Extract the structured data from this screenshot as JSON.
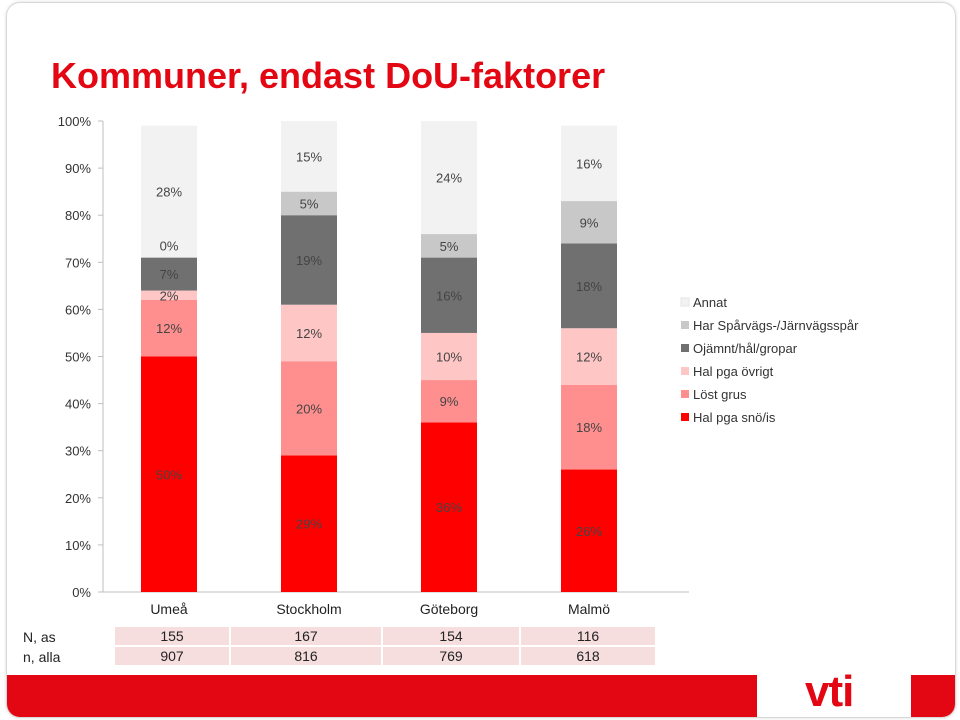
{
  "title": "Kommuner, endast DoU-faktorer",
  "chart_data": {
    "type": "bar",
    "stacked": true,
    "categories": [
      "Umeå",
      "Stockholm",
      "Göteborg",
      "Malmö"
    ],
    "series": [
      {
        "name": "Hal pga snö/is",
        "color": "#ff0000",
        "values": [
          50,
          29,
          36,
          26
        ],
        "labels": [
          "50%",
          "29%",
          "36%",
          "26%"
        ]
      },
      {
        "name": "Löst grus",
        "color": "#ff8f8f",
        "values": [
          12,
          20,
          9,
          18
        ],
        "labels": [
          "12%",
          "20%",
          "9%",
          "18%"
        ]
      },
      {
        "name": "Hal pga övrigt",
        "color": "#ffc6c6",
        "values": [
          2,
          12,
          10,
          12
        ],
        "labels": [
          "2%",
          "12%",
          "10%",
          "12%"
        ]
      },
      {
        "name": "Ojämnt/hål/gropar",
        "color": "#707070",
        "values": [
          7,
          19,
          16,
          18
        ],
        "labels": [
          "7%",
          "19%",
          "16%",
          "18%"
        ]
      },
      {
        "name": "Har Spårvägs-/Järnvägsspår",
        "color": "#c8c8c8",
        "values": [
          0,
          5,
          5,
          9
        ],
        "labels": [
          "0%",
          "5%",
          "5%",
          "9%"
        ]
      },
      {
        "name": "Annat",
        "color": "#f2f2f2",
        "values": [
          28,
          15,
          24,
          16
        ],
        "labels": [
          "28%",
          "15%",
          "24%",
          "16%"
        ]
      }
    ],
    "y_ticks": [
      "0%",
      "10%",
      "20%",
      "30%",
      "40%",
      "50%",
      "60%",
      "70%",
      "80%",
      "90%",
      "100%"
    ],
    "ylim": [
      0,
      100
    ],
    "legend_position": "right",
    "grid": false
  },
  "table": {
    "rows": [
      {
        "label": "N, as",
        "values": [
          "155",
          "167",
          "154",
          "116"
        ]
      },
      {
        "label": "n, alla",
        "values": [
          "907",
          "816",
          "769",
          "618"
        ]
      }
    ]
  },
  "logo": {
    "text": "vti"
  }
}
